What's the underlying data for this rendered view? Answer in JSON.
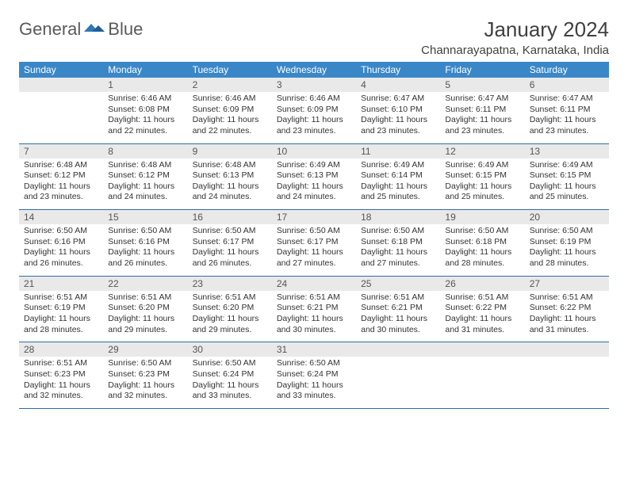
{
  "brand": {
    "word1": "General",
    "word2": "Blue"
  },
  "title": "January 2024",
  "location": "Channarayapatna, Karnataka, India",
  "colors": {
    "header_bg": "#3a87c8",
    "header_text": "#ffffff",
    "daynum_bg": "#e9e9e9",
    "row_border": "#2f6ea8",
    "body_text": "#333333",
    "logo_gray": "#5a5a5a",
    "logo_blue": "#2f78b7"
  },
  "weekdays": [
    "Sunday",
    "Monday",
    "Tuesday",
    "Wednesday",
    "Thursday",
    "Friday",
    "Saturday"
  ],
  "weeks": [
    [
      {
        "n": "",
        "sr": "",
        "ss": "",
        "dl": ""
      },
      {
        "n": "1",
        "sr": "6:46 AM",
        "ss": "6:08 PM",
        "dl": "11 hours and 22 minutes."
      },
      {
        "n": "2",
        "sr": "6:46 AM",
        "ss": "6:09 PM",
        "dl": "11 hours and 22 minutes."
      },
      {
        "n": "3",
        "sr": "6:46 AM",
        "ss": "6:09 PM",
        "dl": "11 hours and 23 minutes."
      },
      {
        "n": "4",
        "sr": "6:47 AM",
        "ss": "6:10 PM",
        "dl": "11 hours and 23 minutes."
      },
      {
        "n": "5",
        "sr": "6:47 AM",
        "ss": "6:11 PM",
        "dl": "11 hours and 23 minutes."
      },
      {
        "n": "6",
        "sr": "6:47 AM",
        "ss": "6:11 PM",
        "dl": "11 hours and 23 minutes."
      }
    ],
    [
      {
        "n": "7",
        "sr": "6:48 AM",
        "ss": "6:12 PM",
        "dl": "11 hours and 23 minutes."
      },
      {
        "n": "8",
        "sr": "6:48 AM",
        "ss": "6:12 PM",
        "dl": "11 hours and 24 minutes."
      },
      {
        "n": "9",
        "sr": "6:48 AM",
        "ss": "6:13 PM",
        "dl": "11 hours and 24 minutes."
      },
      {
        "n": "10",
        "sr": "6:49 AM",
        "ss": "6:13 PM",
        "dl": "11 hours and 24 minutes."
      },
      {
        "n": "11",
        "sr": "6:49 AM",
        "ss": "6:14 PM",
        "dl": "11 hours and 25 minutes."
      },
      {
        "n": "12",
        "sr": "6:49 AM",
        "ss": "6:15 PM",
        "dl": "11 hours and 25 minutes."
      },
      {
        "n": "13",
        "sr": "6:49 AM",
        "ss": "6:15 PM",
        "dl": "11 hours and 25 minutes."
      }
    ],
    [
      {
        "n": "14",
        "sr": "6:50 AM",
        "ss": "6:16 PM",
        "dl": "11 hours and 26 minutes."
      },
      {
        "n": "15",
        "sr": "6:50 AM",
        "ss": "6:16 PM",
        "dl": "11 hours and 26 minutes."
      },
      {
        "n": "16",
        "sr": "6:50 AM",
        "ss": "6:17 PM",
        "dl": "11 hours and 26 minutes."
      },
      {
        "n": "17",
        "sr": "6:50 AM",
        "ss": "6:17 PM",
        "dl": "11 hours and 27 minutes."
      },
      {
        "n": "18",
        "sr": "6:50 AM",
        "ss": "6:18 PM",
        "dl": "11 hours and 27 minutes."
      },
      {
        "n": "19",
        "sr": "6:50 AM",
        "ss": "6:18 PM",
        "dl": "11 hours and 28 minutes."
      },
      {
        "n": "20",
        "sr": "6:50 AM",
        "ss": "6:19 PM",
        "dl": "11 hours and 28 minutes."
      }
    ],
    [
      {
        "n": "21",
        "sr": "6:51 AM",
        "ss": "6:19 PM",
        "dl": "11 hours and 28 minutes."
      },
      {
        "n": "22",
        "sr": "6:51 AM",
        "ss": "6:20 PM",
        "dl": "11 hours and 29 minutes."
      },
      {
        "n": "23",
        "sr": "6:51 AM",
        "ss": "6:20 PM",
        "dl": "11 hours and 29 minutes."
      },
      {
        "n": "24",
        "sr": "6:51 AM",
        "ss": "6:21 PM",
        "dl": "11 hours and 30 minutes."
      },
      {
        "n": "25",
        "sr": "6:51 AM",
        "ss": "6:21 PM",
        "dl": "11 hours and 30 minutes."
      },
      {
        "n": "26",
        "sr": "6:51 AM",
        "ss": "6:22 PM",
        "dl": "11 hours and 31 minutes."
      },
      {
        "n": "27",
        "sr": "6:51 AM",
        "ss": "6:22 PM",
        "dl": "11 hours and 31 minutes."
      }
    ],
    [
      {
        "n": "28",
        "sr": "6:51 AM",
        "ss": "6:23 PM",
        "dl": "11 hours and 32 minutes."
      },
      {
        "n": "29",
        "sr": "6:50 AM",
        "ss": "6:23 PM",
        "dl": "11 hours and 32 minutes."
      },
      {
        "n": "30",
        "sr": "6:50 AM",
        "ss": "6:24 PM",
        "dl": "11 hours and 33 minutes."
      },
      {
        "n": "31",
        "sr": "6:50 AM",
        "ss": "6:24 PM",
        "dl": "11 hours and 33 minutes."
      },
      {
        "n": "",
        "sr": "",
        "ss": "",
        "dl": ""
      },
      {
        "n": "",
        "sr": "",
        "ss": "",
        "dl": ""
      },
      {
        "n": "",
        "sr": "",
        "ss": "",
        "dl": ""
      }
    ]
  ],
  "labels": {
    "sunrise": "Sunrise:",
    "sunset": "Sunset:",
    "daylight": "Daylight:"
  }
}
